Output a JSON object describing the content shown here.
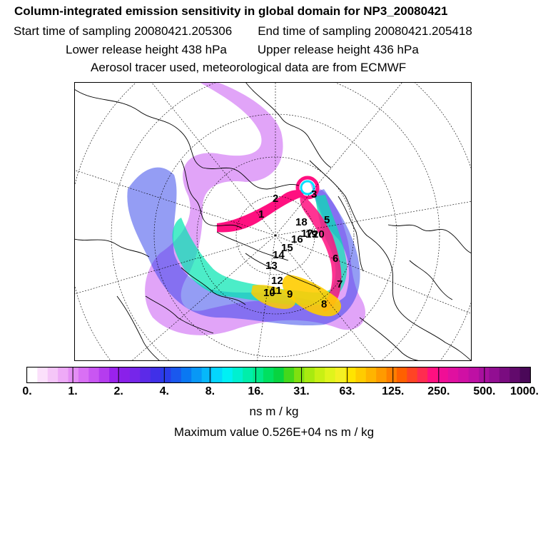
{
  "header": {
    "title": "Column-integrated emission sensitivity in global domain for NP3_20080421",
    "start_label": "Start time of sampling 20080421.205306",
    "end_label": "End time of sampling 20080421.205418",
    "lower_label": "Lower release height  438 hPa",
    "upper_label": "Upper release height  436 hPa",
    "tracer_label": "Aerosol tracer used, meteorological data are from ECMWF"
  },
  "map": {
    "projection": "polar-stereographic",
    "track_labels": [
      "1",
      "2",
      "3",
      "5",
      "6",
      "7",
      "8",
      "9",
      "10",
      "11",
      "12",
      "13",
      "14",
      "15",
      "16",
      "17",
      "18",
      "19",
      "20"
    ]
  },
  "colorbar": {
    "tick_labels": [
      "0.",
      "1.",
      "2.",
      "4.",
      "8.",
      "16.",
      "31.",
      "63.",
      "125.",
      "250.",
      "500.",
      "1000."
    ],
    "colors": [
      "#ffffff",
      "#fbe0fb",
      "#f5c6f8",
      "#eeaaf7",
      "#e48ef5",
      "#d970f4",
      "#c956f2",
      "#b53cef",
      "#9a22ec",
      "#8a20ea",
      "#7626ea",
      "#5c2ae8",
      "#4030e8",
      "#2a3cea",
      "#1a58ee",
      "#0a78f2",
      "#0898f6",
      "#06b8fa",
      "#04d6fc",
      "#00f0f4",
      "#00f0d0",
      "#00eeaa",
      "#00e88a",
      "#00e060",
      "#08d440",
      "#44d81c",
      "#80e010",
      "#a8ea10",
      "#c8f014",
      "#e0f41c",
      "#f4f024",
      "#ffe400",
      "#ffcc00",
      "#ffb400",
      "#ff9a00",
      "#ff7e00",
      "#ff6000",
      "#ff4424",
      "#ff2c50",
      "#ff1080",
      "#f00e96",
      "#e010a0",
      "#d010a4",
      "#be10a4",
      "#a8109e",
      "#920e92",
      "#7a0c80",
      "#620a6c",
      "#4a0858"
    ]
  },
  "units_label": "ns m / kg",
  "max_label": "Maximum value  0.526E+04 ns m / kg"
}
